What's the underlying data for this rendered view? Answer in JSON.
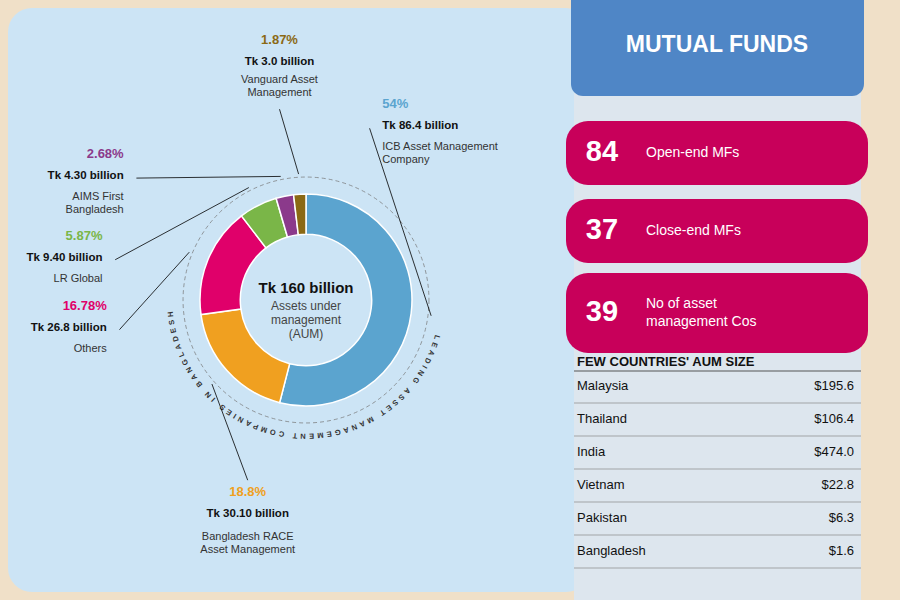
{
  "chart_data": {
    "type": "donut",
    "title": "MUTUAL FUNDS",
    "categories": [
      "ICB Asset Management\nCompany",
      "Bangladesh RACE\nAsset Management",
      "Others",
      "LR Global",
      "AIMS First\nBangladesh",
      "Vanguard Asset\nManagement"
    ],
    "values": [
      54.0,
      18.8,
      16.78,
      5.87,
      2.68,
      1.87
    ],
    "value_labels": [
      "54%",
      "18.8%",
      "16.78%",
      "5.87%",
      "2.68%",
      "1.87%"
    ],
    "amounts": [
      "Tk 86.4 billion",
      "Tk 30.10 billion",
      "Tk 26.8 billion",
      "Tk 9.40 billion",
      "Tk 4.30 billion",
      "Tk 3.0 billion"
    ],
    "colors": [
      "#5ba4cf",
      "#f0a020",
      "#e0006a",
      "#7ab648",
      "#8b3a8b",
      "#8B6914"
    ],
    "center_text": "Tk 160 billion",
    "center_subtext": "Assets under\nmanagement\n(AUM)",
    "curved_text": "LEADING ASSET MANAGEMENT COMPANIES IN BANGLADESH",
    "stats": [
      {
        "number": 84,
        "label": "Open-end MFs"
      },
      {
        "number": 37,
        "label": "Close-end MFs"
      },
      {
        "number": 39,
        "label": "No of asset\nmanagement Cos"
      }
    ],
    "table_title": "FEW COUNTRIES' AUM SIZE",
    "table": [
      {
        "country": "Malaysia",
        "value": "$195.6"
      },
      {
        "country": "Thailand",
        "value": "$106.4"
      },
      {
        "country": "India",
        "value": "$474.0"
      },
      {
        "country": "Vietnam",
        "value": "$22.8"
      },
      {
        "country": "Pakistan",
        "value": "$6.3"
      },
      {
        "country": "Bangladesh",
        "value": "$1.6"
      }
    ]
  }
}
